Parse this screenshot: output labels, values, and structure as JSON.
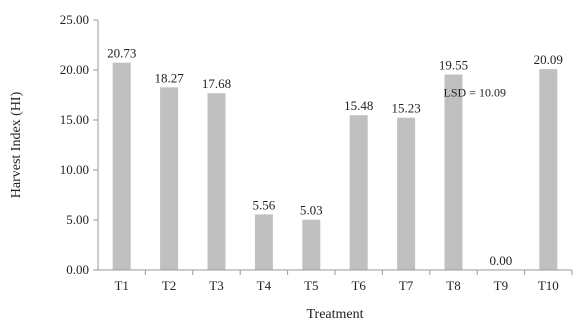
{
  "chart_data": {
    "type": "bar",
    "categories": [
      "T1",
      "T2",
      "T3",
      "T4",
      "T5",
      "T6",
      "T7",
      "T8",
      "T9",
      "T10"
    ],
    "values": [
      20.73,
      18.27,
      17.68,
      5.56,
      5.03,
      15.48,
      15.23,
      19.55,
      0.0,
      20.09
    ],
    "data_labels": [
      "20.73",
      "18.27",
      "17.68",
      "5.56",
      "5.03",
      "15.48",
      "15.23",
      "19.55",
      "0.00",
      "20.09"
    ],
    "y_ticks": [
      "0.00",
      "5.00",
      "10.00",
      "15.00",
      "20.00",
      "25.00"
    ],
    "y_tick_values": [
      0,
      5,
      10,
      15,
      20,
      25
    ],
    "xlabel": "Treatment",
    "ylabel": "Harvest Index (HI)",
    "ylim": [
      0,
      25
    ],
    "grid": false,
    "bar_color": "#c0c0c0",
    "annotation": {
      "text": "LSD = 10.09",
      "near_category": "T8"
    }
  }
}
